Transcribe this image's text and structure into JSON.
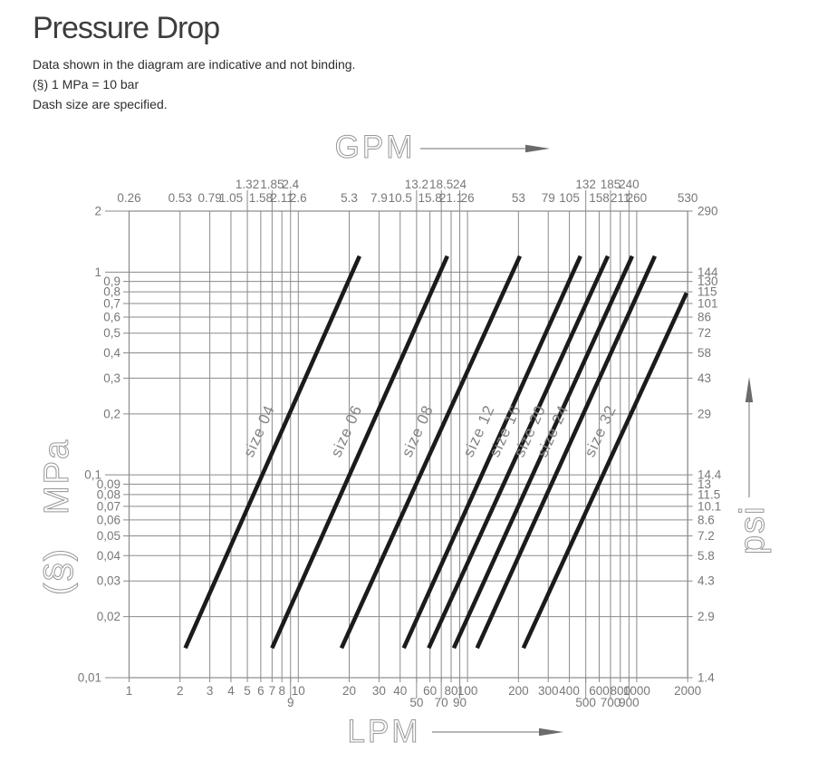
{
  "page": {
    "title": "Pressure Drop",
    "notes": [
      "Data shown in the diagram are indicative and not binding.",
      "(§) 1 MPa = 10 bar",
      "Dash size are specified."
    ]
  },
  "colors": {
    "background": "#ffffff",
    "title_text": "#3d3d3d",
    "body_text": "#2d2d2d",
    "grid": "#8a8a8a",
    "axis_text": "#787878",
    "axis_outline_text": "#979797",
    "arrow_shaft": "#8a8a8a",
    "arrow_head": "#6b6b6b",
    "series_line": "#1b1b1b",
    "series_label": "#848484"
  },
  "chart_data": {
    "type": "line",
    "title": "Pressure Drop",
    "x_scale": "log",
    "y_scale": "log",
    "x_range_lpm": [
      1,
      2000
    ],
    "y_range_mpa": [
      0.01,
      2
    ],
    "grid": true,
    "gridlines": {
      "x_lpm": [
        1,
        2,
        3,
        4,
        5,
        6,
        7,
        8,
        9,
        10,
        20,
        30,
        40,
        50,
        60,
        70,
        80,
        90,
        100,
        200,
        300,
        400,
        500,
        600,
        700,
        800,
        900,
        1000,
        2000
      ],
      "y_mpa": [
        0.01,
        0.02,
        0.03,
        0.04,
        0.05,
        0.06,
        0.07,
        0.08,
        0.09,
        0.1,
        0.2,
        0.3,
        0.4,
        0.5,
        0.6,
        0.7,
        0.8,
        0.9,
        1,
        2
      ]
    },
    "axes": {
      "top": {
        "label": "GPM",
        "row1": [
          [
            1,
            "0.26"
          ],
          [
            2,
            "0.53"
          ],
          [
            3,
            "0.79"
          ],
          [
            4,
            "1.05"
          ],
          [
            6,
            "1.58"
          ],
          [
            8,
            "2.11"
          ],
          [
            10,
            "2.6"
          ],
          [
            20,
            "5.3"
          ],
          [
            30,
            "7.9"
          ],
          [
            40,
            "10.5"
          ],
          [
            60,
            "15.8"
          ],
          [
            80,
            "21.1"
          ],
          [
            100,
            "26"
          ],
          [
            200,
            "53"
          ],
          [
            300,
            "79"
          ],
          [
            400,
            "105"
          ],
          [
            600,
            "158"
          ],
          [
            800,
            "211"
          ],
          [
            1000,
            "260"
          ],
          [
            2000,
            "530"
          ]
        ],
        "row2": [
          [
            5,
            "1.32"
          ],
          [
            7,
            "1.85"
          ],
          [
            9,
            "2.4"
          ],
          [
            50,
            "13.2"
          ],
          [
            70,
            "18.5"
          ],
          [
            90,
            "24"
          ],
          [
            500,
            "132"
          ],
          [
            700,
            "185"
          ],
          [
            900,
            "240"
          ]
        ]
      },
      "bottom": {
        "label": "LPM",
        "row1": [
          [
            1,
            "1"
          ],
          [
            2,
            "2"
          ],
          [
            3,
            "3"
          ],
          [
            4,
            "4"
          ],
          [
            5,
            "5"
          ],
          [
            6,
            "6"
          ],
          [
            7,
            "7"
          ],
          [
            8,
            "8"
          ],
          [
            10,
            "10"
          ],
          [
            20,
            "20"
          ],
          [
            30,
            "30"
          ],
          [
            40,
            "40"
          ],
          [
            60,
            "60"
          ],
          [
            80,
            "80"
          ],
          [
            100,
            "100"
          ],
          [
            200,
            "200"
          ],
          [
            300,
            "300"
          ],
          [
            400,
            "400"
          ],
          [
            600,
            "600"
          ],
          [
            800,
            "800"
          ],
          [
            1000,
            "1000"
          ],
          [
            2000,
            "2000"
          ]
        ],
        "row2": [
          [
            9,
            "9"
          ],
          [
            50,
            "50"
          ],
          [
            70,
            "70"
          ],
          [
            90,
            "90"
          ],
          [
            500,
            "500"
          ],
          [
            700,
            "700"
          ],
          [
            900,
            "900"
          ]
        ]
      },
      "left": {
        "label": "MPa",
        "sublabel": "(§)",
        "major": [
          [
            2,
            "2"
          ],
          [
            1,
            "1"
          ],
          [
            0.1,
            "0,1"
          ],
          [
            0.01,
            "0,01"
          ]
        ],
        "minor": [
          [
            0.9,
            "0,9"
          ],
          [
            0.8,
            "0,8"
          ],
          [
            0.7,
            "0,7"
          ],
          [
            0.6,
            "0,6"
          ],
          [
            0.5,
            "0,5"
          ],
          [
            0.4,
            "0,4"
          ],
          [
            0.3,
            "0,3"
          ],
          [
            0.2,
            "0,2"
          ],
          [
            0.09,
            "0,09"
          ],
          [
            0.08,
            "0,08"
          ],
          [
            0.07,
            "0,07"
          ],
          [
            0.06,
            "0,06"
          ],
          [
            0.05,
            "0,05"
          ],
          [
            0.04,
            "0,04"
          ],
          [
            0.03,
            "0,03"
          ],
          [
            0.02,
            "0,02"
          ]
        ]
      },
      "right": {
        "label": "psi",
        "ticks": [
          [
            2,
            "290"
          ],
          [
            1,
            "144"
          ],
          [
            0.9,
            "130"
          ],
          [
            0.8,
            "115"
          ],
          [
            0.7,
            "101"
          ],
          [
            0.6,
            "86"
          ],
          [
            0.5,
            "72"
          ],
          [
            0.4,
            "58"
          ],
          [
            0.3,
            "43"
          ],
          [
            0.2,
            "29"
          ],
          [
            0.1,
            "14.4"
          ],
          [
            0.09,
            "13"
          ],
          [
            0.08,
            "11.5"
          ],
          [
            0.07,
            "10.1"
          ],
          [
            0.06,
            "8.6"
          ],
          [
            0.05,
            "7.2"
          ],
          [
            0.04,
            "5.8"
          ],
          [
            0.03,
            "4.3"
          ],
          [
            0.02,
            "2.9"
          ],
          [
            0.01,
            "1.4"
          ]
        ]
      }
    },
    "series": [
      {
        "name": "size 04",
        "points_lpm_mpa": [
          [
            2.15,
            0.014
          ],
          [
            23,
            1.2
          ]
        ]
      },
      {
        "name": "size 06",
        "points_lpm_mpa": [
          [
            7,
            0.014
          ],
          [
            76,
            1.2
          ]
        ]
      },
      {
        "name": "size 08",
        "points_lpm_mpa": [
          [
            18,
            0.014
          ],
          [
            204,
            1.2
          ]
        ]
      },
      {
        "name": "size 12",
        "points_lpm_mpa": [
          [
            42,
            0.014
          ],
          [
            465,
            1.2
          ]
        ]
      },
      {
        "name": "size 16",
        "points_lpm_mpa": [
          [
            59,
            0.014
          ],
          [
            675,
            1.2
          ]
        ]
      },
      {
        "name": "size 20",
        "points_lpm_mpa": [
          [
            83,
            0.014
          ],
          [
            940,
            1.2
          ]
        ]
      },
      {
        "name": "size 24",
        "points_lpm_mpa": [
          [
            114,
            0.014
          ],
          [
            1280,
            1.2
          ]
        ]
      },
      {
        "name": "size 32",
        "points_lpm_mpa": [
          [
            214,
            0.014
          ],
          [
            1970,
            0.79
          ]
        ]
      }
    ]
  }
}
